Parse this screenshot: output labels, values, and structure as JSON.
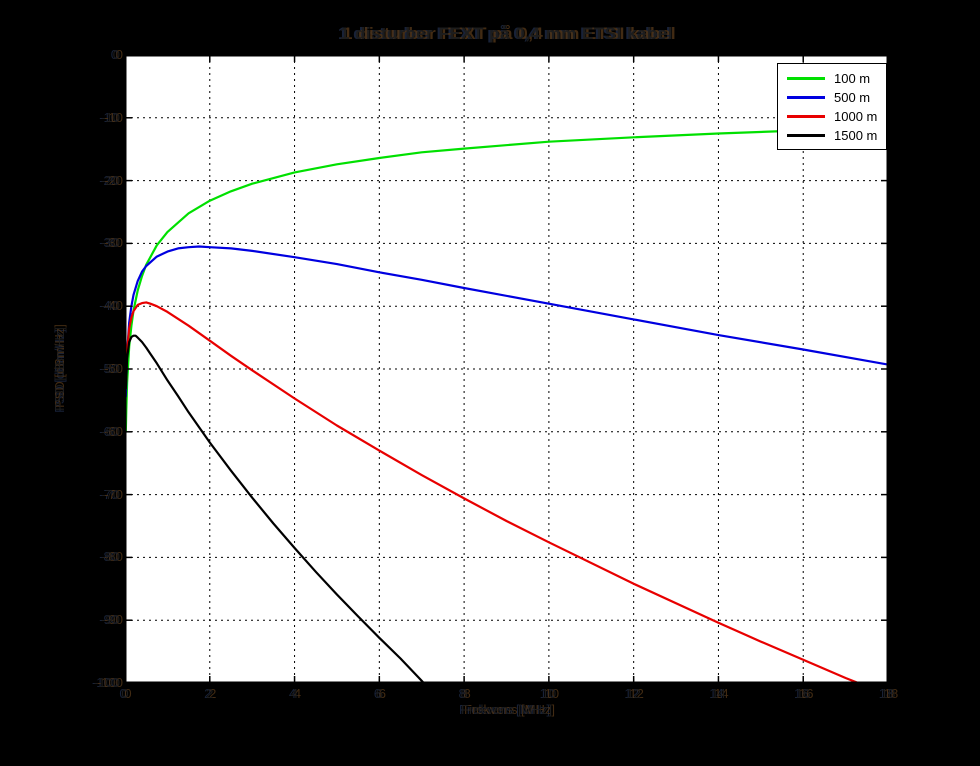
{
  "figure": {
    "background_color": "#000000",
    "plot_background_color": "#ffffff",
    "axes_color": "#000000",
    "text_style": "near-black ghosted text on black background"
  },
  "chart_data": {
    "type": "line",
    "title": "1 disturber FEXT på 0,4 mm ETSI kabel",
    "xlabel": "Frekvens [MHz]",
    "ylabel": "PSD [dBm/Hz]",
    "xlim": [
      0,
      18
    ],
    "ylim": [
      -100,
      0
    ],
    "xticks": [
      0,
      2,
      4,
      6,
      8,
      10,
      12,
      14,
      16,
      18
    ],
    "yticks": [
      0,
      -10,
      -20,
      -30,
      -40,
      -50,
      -60,
      -70,
      -80,
      -90,
      -100
    ],
    "grid": true,
    "grid_style": "dotted black",
    "legend_position": "top-right",
    "series": [
      {
        "name": "100 m",
        "color": "#00e000",
        "points": [
          [
            0.02,
            -60.0
          ],
          [
            0.03,
            -56.5
          ],
          [
            0.05,
            -52.2
          ],
          [
            0.1,
            -46.4
          ],
          [
            0.15,
            -43.1
          ],
          [
            0.2,
            -40.7
          ],
          [
            0.3,
            -37.5
          ],
          [
            0.4,
            -35.2
          ],
          [
            0.5,
            -33.4
          ],
          [
            0.75,
            -30.3
          ],
          [
            1,
            -28.2
          ],
          [
            1.5,
            -25.2
          ],
          [
            2,
            -23.2
          ],
          [
            2.5,
            -21.7
          ],
          [
            3,
            -20.5
          ],
          [
            4,
            -18.7
          ],
          [
            5,
            -17.4
          ],
          [
            6,
            -16.4
          ],
          [
            7,
            -15.5
          ],
          [
            8,
            -14.9
          ],
          [
            10,
            -13.8
          ],
          [
            12,
            -13.1
          ],
          [
            14,
            -12.5
          ],
          [
            16,
            -12.0
          ],
          [
            18,
            -11.7
          ]
        ]
      },
      {
        "name": "500 m",
        "color": "#0000e0",
        "points": [
          [
            0.02,
            -54.4
          ],
          [
            0.05,
            -47.5
          ],
          [
            0.1,
            -42.6
          ],
          [
            0.15,
            -40.0
          ],
          [
            0.2,
            -38.2
          ],
          [
            0.3,
            -36.0
          ],
          [
            0.4,
            -34.5
          ],
          [
            0.5,
            -33.6
          ],
          [
            0.75,
            -32.1
          ],
          [
            1,
            -31.3
          ],
          [
            1.25,
            -30.8
          ],
          [
            1.5,
            -30.6
          ],
          [
            1.75,
            -30.5
          ],
          [
            2,
            -30.6
          ],
          [
            2.5,
            -30.8
          ],
          [
            3,
            -31.2
          ],
          [
            4,
            -32.2
          ],
          [
            5,
            -33.3
          ],
          [
            6,
            -34.6
          ],
          [
            7,
            -35.8
          ],
          [
            8,
            -37.1
          ],
          [
            10,
            -39.6
          ],
          [
            12,
            -42.1
          ],
          [
            14,
            -44.6
          ],
          [
            16,
            -46.9
          ],
          [
            18,
            -49.3
          ]
        ]
      },
      {
        "name": "1000 m",
        "color": "#e80000",
        "points": [
          [
            0.02,
            -53.1
          ],
          [
            0.05,
            -47.2
          ],
          [
            0.1,
            -43.5
          ],
          [
            0.15,
            -41.8
          ],
          [
            0.2,
            -40.8
          ],
          [
            0.3,
            -39.8
          ],
          [
            0.4,
            -39.5
          ],
          [
            0.5,
            -39.4
          ],
          [
            0.6,
            -39.6
          ],
          [
            0.75,
            -40.0
          ],
          [
            1,
            -40.9
          ],
          [
            1.5,
            -43.1
          ],
          [
            2,
            -45.5
          ],
          [
            2.5,
            -47.9
          ],
          [
            3,
            -50.2
          ],
          [
            4,
            -54.7
          ],
          [
            5,
            -59.0
          ],
          [
            6,
            -63.0
          ],
          [
            7,
            -66.9
          ],
          [
            8,
            -70.6
          ],
          [
            9,
            -74.2
          ],
          [
            10,
            -77.6
          ],
          [
            12,
            -84.2
          ],
          [
            14,
            -90.4
          ],
          [
            15,
            -93.4
          ],
          [
            16,
            -96.3
          ],
          [
            17,
            -99.2
          ],
          [
            17.3,
            -100.0
          ]
        ]
      },
      {
        "name": "1500 m",
        "color": "#000000",
        "points": [
          [
            0.02,
            -53.1
          ],
          [
            0.05,
            -48.3
          ],
          [
            0.1,
            -45.7
          ],
          [
            0.15,
            -44.9
          ],
          [
            0.2,
            -44.7
          ],
          [
            0.25,
            -44.7
          ],
          [
            0.3,
            -45.0
          ],
          [
            0.4,
            -45.7
          ],
          [
            0.5,
            -46.6
          ],
          [
            0.6,
            -47.6
          ],
          [
            0.75,
            -49.1
          ],
          [
            1,
            -51.8
          ],
          [
            1.25,
            -54.3
          ],
          [
            1.5,
            -56.9
          ],
          [
            2,
            -61.7
          ],
          [
            2.5,
            -66.2
          ],
          [
            3,
            -70.5
          ],
          [
            3.5,
            -74.6
          ],
          [
            4,
            -78.5
          ],
          [
            4.5,
            -82.3
          ],
          [
            5,
            -85.9
          ],
          [
            5.5,
            -89.4
          ],
          [
            6,
            -92.8
          ],
          [
            6.5,
            -96.1
          ],
          [
            7.05,
            -100.0
          ]
        ]
      }
    ]
  }
}
